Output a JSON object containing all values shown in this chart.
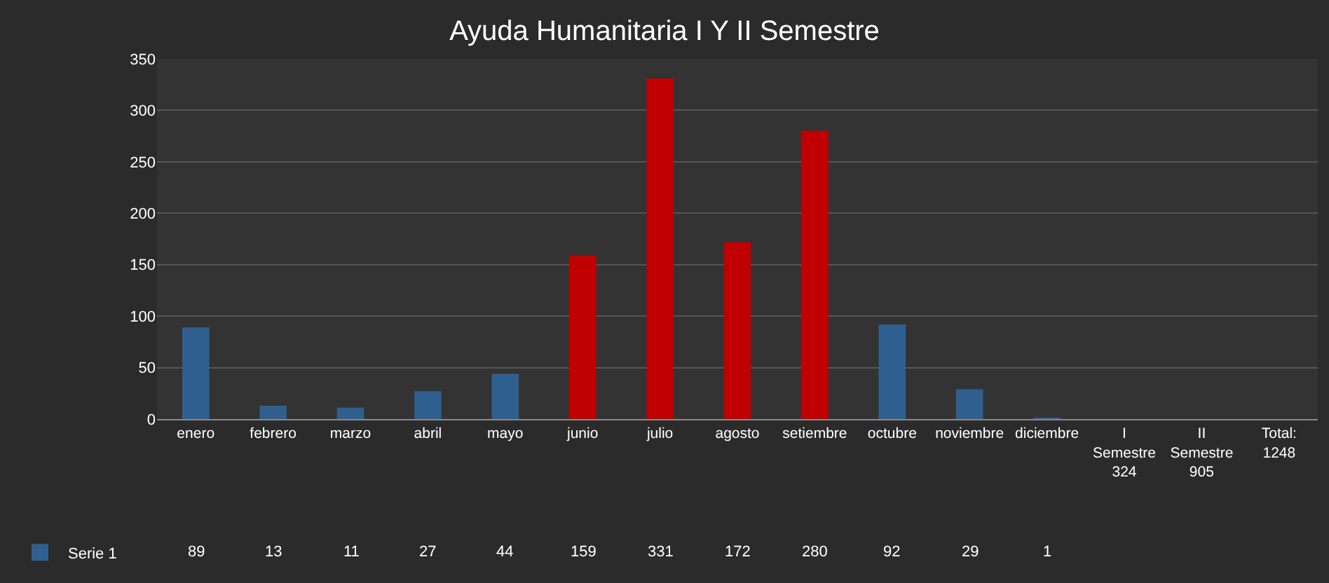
{
  "chart_data": {
    "type": "bar",
    "title": "Ayuda Humanitaria I Y II Semestre",
    "categories": [
      "enero",
      "febrero",
      "marzo",
      "abril",
      "mayo",
      "junio",
      "julio",
      "agosto",
      "setiembre",
      "octubre",
      "noviembre",
      "diciembre",
      "I Semestre 324",
      "II Semestre 905",
      "Total: 1248"
    ],
    "series": [
      {
        "name": "Serie 1",
        "color": "#2f5f8f",
        "colors": [
          null,
          null,
          null,
          null,
          null,
          "#c00000",
          "#c00000",
          "#c00000",
          "#c00000",
          null,
          null,
          null,
          null,
          null,
          null
        ],
        "values": [
          89,
          13,
          11,
          27,
          44,
          159,
          331,
          172,
          280,
          92,
          29,
          1,
          null,
          null,
          null
        ]
      }
    ],
    "ylim": [
      0,
      350
    ],
    "yticks": [
      0,
      50,
      100,
      150,
      200,
      250,
      300,
      350
    ],
    "grid": "y",
    "data_labels": true,
    "legend": "bottom left"
  }
}
